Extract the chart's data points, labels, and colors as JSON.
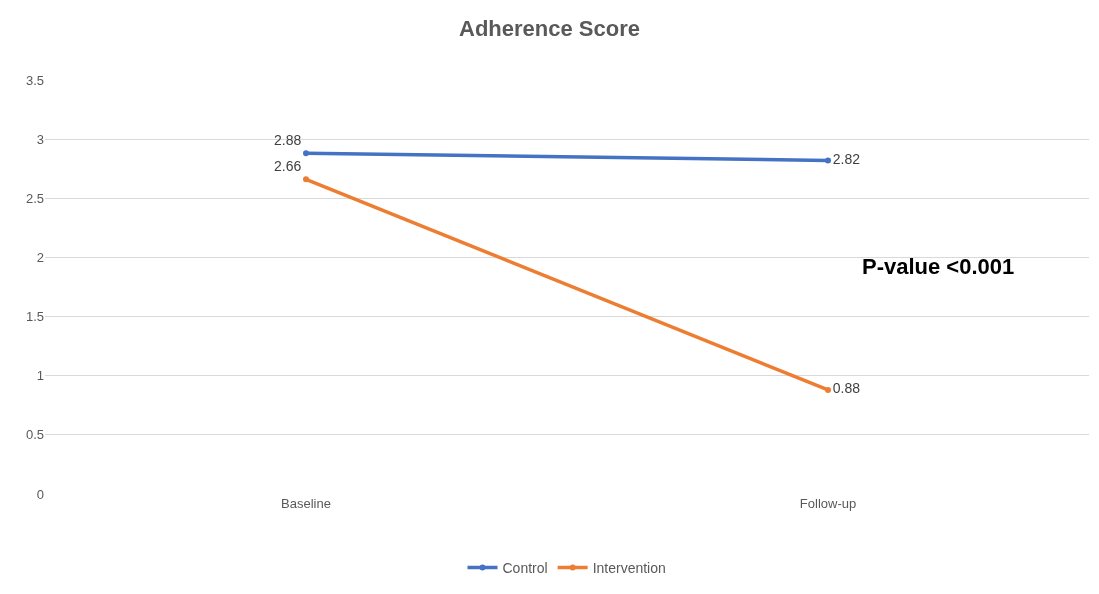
{
  "chart_data": {
    "type": "line",
    "title": "Adherence Score",
    "categories": [
      "Baseline",
      "Follow-up"
    ],
    "series": [
      {
        "name": "Control",
        "color": "#4472c4",
        "values": [
          2.88,
          2.82
        ]
      },
      {
        "name": "Intervention",
        "color": "#ed7d31",
        "values": [
          2.66,
          0.88
        ]
      }
    ],
    "ylim": [
      0,
      3.5
    ],
    "yticks": [
      0,
      0.5,
      1,
      1.5,
      2,
      2.5,
      3,
      3.5
    ],
    "grid": "y",
    "legend": "bottom",
    "marker": "circle",
    "line_style": "solid",
    "data_labels": true,
    "annotations": [
      "P-value <0.001"
    ]
  }
}
